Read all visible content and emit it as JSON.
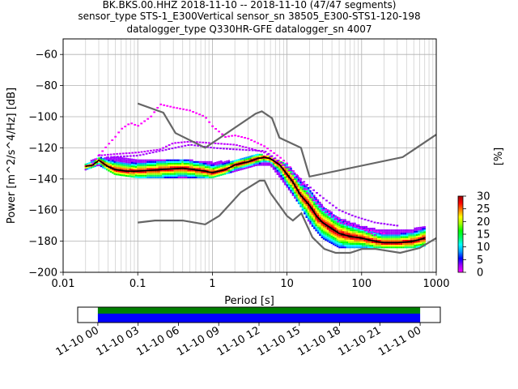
{
  "chart_data": {
    "type": "heatmap",
    "title_lines": [
      "BK.BKS.00.HHZ   2018-11-10 -- 2018-11-10  (47/47 segments)",
      "sensor_type STS-1_E300Vertical sensor_sn 38505_E300-STS1-120-198",
      "datalogger_type Q330HR-GFE datalogger_sn 4007"
    ],
    "xlabel": "Period [s]",
    "ylabel": "Power [m^2/s^4/Hz] [dB]",
    "xscale": "log",
    "xlim": [
      0.01,
      1000
    ],
    "ylim": [
      -200,
      -50
    ],
    "x_ticks": [
      {
        "v": 0.01,
        "label": "0.01"
      },
      {
        "v": 0.1,
        "label": "0.1"
      },
      {
        "v": 1,
        "label": "1"
      },
      {
        "v": 10,
        "label": "10"
      },
      {
        "v": 100,
        "label": "100"
      },
      {
        "v": 1000,
        "label": "1000"
      }
    ],
    "y_ticks": [
      {
        "v": -60,
        "label": "−60"
      },
      {
        "v": -80,
        "label": "−80"
      },
      {
        "v": -100,
        "label": "−100"
      },
      {
        "v": -120,
        "label": "−120"
      },
      {
        "v": -140,
        "label": "−140"
      },
      {
        "v": -160,
        "label": "−160"
      },
      {
        "v": -180,
        "label": "−180"
      },
      {
        "v": -200,
        "label": "−200"
      }
    ],
    "grid": true,
    "noise_models": [
      {
        "name": "high",
        "points": [
          [
            0.1,
            -91.5
          ],
          [
            0.22,
            -97.4
          ],
          [
            0.32,
            -110.5
          ],
          [
            0.8,
            -120
          ],
          [
            3.8,
            -98
          ],
          [
            4.6,
            -96.5
          ],
          [
            6.3,
            -101
          ],
          [
            7.9,
            -113.5
          ],
          [
            15.4,
            -120
          ],
          [
            20,
            -138.5
          ],
          [
            354.8,
            -126
          ],
          [
            1000,
            -111.5
          ]
        ]
      },
      {
        "name": "low",
        "points": [
          [
            0.1,
            -168
          ],
          [
            0.17,
            -166.7
          ],
          [
            0.4,
            -166.7
          ],
          [
            0.8,
            -169.2
          ],
          [
            1.24,
            -163.7
          ],
          [
            2.4,
            -148.6
          ],
          [
            4.3,
            -141.1
          ],
          [
            5,
            -141.1
          ],
          [
            6,
            -149
          ],
          [
            10,
            -163.8
          ],
          [
            12,
            -166.7
          ],
          [
            15.6,
            -162.1
          ],
          [
            21.9,
            -177.5
          ],
          [
            31.6,
            -185
          ],
          [
            45,
            -187.5
          ],
          [
            70,
            -187.5
          ],
          [
            101,
            -185
          ],
          [
            154,
            -185
          ],
          [
            328,
            -187.5
          ],
          [
            600,
            -184.4
          ],
          [
            1000,
            -178
          ]
        ]
      }
    ],
    "mean_curve": {
      "color": "#000000",
      "points": [
        [
          0.02,
          -132
        ],
        [
          0.025,
          -131
        ],
        [
          0.03,
          -128
        ],
        [
          0.04,
          -132
        ],
        [
          0.05,
          -134
        ],
        [
          0.07,
          -135
        ],
        [
          0.1,
          -135
        ],
        [
          0.2,
          -134
        ],
        [
          0.4,
          -133
        ],
        [
          0.8,
          -135
        ],
        [
          1,
          -136
        ],
        [
          1.5,
          -134
        ],
        [
          2,
          -131
        ],
        [
          3,
          -129
        ],
        [
          4,
          -127
        ],
        [
          5,
          -126
        ],
        [
          6,
          -127
        ],
        [
          8,
          -131
        ],
        [
          10,
          -137
        ],
        [
          12,
          -142
        ],
        [
          15,
          -150
        ],
        [
          20,
          -157
        ],
        [
          25,
          -164
        ],
        [
          30,
          -168
        ],
        [
          40,
          -172
        ],
        [
          50,
          -175
        ],
        [
          70,
          -177
        ],
        [
          100,
          -178
        ],
        [
          150,
          -180
        ],
        [
          200,
          -181
        ],
        [
          300,
          -181
        ],
        [
          500,
          -180
        ],
        [
          700,
          -178
        ]
      ]
    },
    "psd_band": {
      "upper": [
        [
          0.02,
          -130
        ],
        [
          0.03,
          -126
        ],
        [
          0.05,
          -126
        ],
        [
          0.1,
          -128
        ],
        [
          0.3,
          -127
        ],
        [
          1,
          -129
        ],
        [
          2,
          -128
        ],
        [
          4,
          -124
        ],
        [
          6,
          -125
        ],
        [
          10,
          -130
        ],
        [
          15,
          -140
        ],
        [
          20,
          -146
        ],
        [
          30,
          -157
        ],
        [
          50,
          -165
        ],
        [
          100,
          -170
        ],
        [
          200,
          -173
        ],
        [
          500,
          -172
        ],
        [
          700,
          -170
        ]
      ],
      "lower": [
        [
          0.02,
          -134
        ],
        [
          0.03,
          -131
        ],
        [
          0.05,
          -137
        ],
        [
          0.1,
          -139
        ],
        [
          0.3,
          -139
        ],
        [
          1,
          -139
        ],
        [
          2,
          -135
        ],
        [
          4,
          -131
        ],
        [
          6,
          -131
        ],
        [
          10,
          -145
        ],
        [
          15,
          -157
        ],
        [
          20,
          -168
        ],
        [
          30,
          -178
        ],
        [
          50,
          -184
        ],
        [
          100,
          -184
        ],
        [
          200,
          -184
        ],
        [
          500,
          -184
        ],
        [
          700,
          -183
        ]
      ]
    },
    "outliers": [
      [
        [
          0.025,
          -130
        ],
        [
          0.03,
          -125
        ],
        [
          0.04,
          -118
        ],
        [
          0.05,
          -113
        ],
        [
          0.06,
          -108
        ],
        [
          0.08,
          -104
        ],
        [
          0.1,
          -106
        ],
        [
          0.15,
          -100
        ],
        [
          0.2,
          -92
        ],
        [
          0.3,
          -94
        ],
        [
          0.5,
          -96
        ],
        [
          0.8,
          -100
        ],
        [
          1,
          -106
        ],
        [
          1.5,
          -113
        ],
        [
          2,
          -112
        ],
        [
          3,
          -114
        ],
        [
          5,
          -119
        ],
        [
          8,
          -126
        ],
        [
          10,
          -130
        ],
        [
          15,
          -140
        ],
        [
          20,
          -150
        ],
        [
          30,
          -158
        ],
        [
          40,
          -163
        ],
        [
          60,
          -168
        ],
        [
          100,
          -172
        ],
        [
          200,
          -175
        ]
      ],
      [
        [
          0.03,
          -125
        ],
        [
          0.05,
          -124
        ],
        [
          0.1,
          -123
        ],
        [
          0.2,
          -121
        ],
        [
          0.3,
          -117
        ],
        [
          0.5,
          -116
        ],
        [
          1,
          -117
        ],
        [
          2,
          -118
        ],
        [
          3,
          -120
        ],
        [
          5,
          -123
        ],
        [
          10,
          -133
        ],
        [
          15,
          -143
        ],
        [
          20,
          -151
        ],
        [
          30,
          -160
        ],
        [
          50,
          -168
        ],
        [
          100,
          -172
        ],
        [
          150,
          -176
        ]
      ],
      [
        [
          0.04,
          -126
        ],
        [
          0.1,
          -125
        ],
        [
          0.2,
          -122
        ],
        [
          0.5,
          -118
        ],
        [
          1,
          -120
        ],
        [
          2,
          -121
        ],
        [
          5,
          -122
        ],
        [
          10,
          -132
        ],
        [
          20,
          -145
        ],
        [
          30,
          -152
        ],
        [
          50,
          -160
        ],
        [
          80,
          -164
        ],
        [
          150,
          -168
        ],
        [
          300,
          -170
        ]
      ]
    ],
    "colorbar": {
      "label": "[%]",
      "range": [
        0,
        30
      ],
      "ticks": [
        {
          "v": 0,
          "label": "0"
        },
        {
          "v": 5,
          "label": "5"
        },
        {
          "v": 10,
          "label": "10"
        },
        {
          "v": 15,
          "label": "15"
        },
        {
          "v": 20,
          "label": "20"
        },
        {
          "v": 25,
          "label": "25"
        },
        {
          "v": 30,
          "label": "30"
        }
      ],
      "colors": [
        "#ff00ff",
        "#9f00ff",
        "#0000ff",
        "#00a0ff",
        "#00ffff",
        "#00ff60",
        "#00ff00",
        "#a0ff00",
        "#ffff00",
        "#ff8000",
        "#ff0000",
        "#a00000"
      ]
    },
    "coverage": {
      "start": "11-10 00",
      "ticks": [
        "11-10 00",
        "11-10 03",
        "11-10 06",
        "11-10 09",
        "11-10 12",
        "11-10 15",
        "11-10 18",
        "11-10 21",
        "11-11 00"
      ],
      "range_hours": [
        -1.5,
        25.5
      ],
      "data_hours": [
        0,
        24
      ],
      "colors": {
        "processed": "#008000",
        "data": "#0000ff"
      }
    }
  }
}
